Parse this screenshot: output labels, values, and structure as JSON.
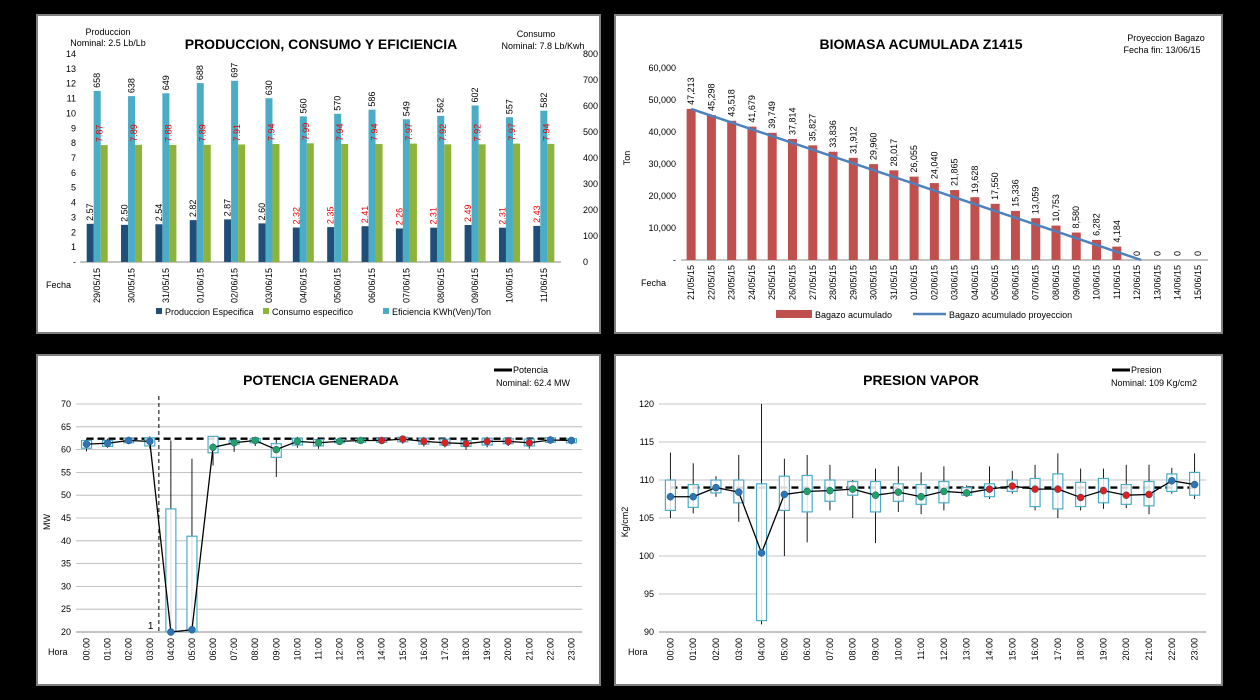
{
  "chart_data": [
    {
      "type": "bar",
      "title": "PRODUCCION, CONSUMO Y EFICIENCIA",
      "left_note": [
        "Produccion",
        "Nominal: 2.5 Lb/Lb"
      ],
      "right_note": [
        "Consumo",
        "Nominal: 7.8 Lb/Kwh"
      ],
      "xlabel": "Fecha",
      "categories": [
        "29/05/15",
        "30/05/15",
        "31/05/15",
        "01/06/15",
        "02/06/15",
        "03/06/15",
        "04/06/15",
        "05/06/15",
        "06/06/15",
        "07/06/15",
        "08/06/15",
        "09/06/15",
        "10/06/15",
        "11/06/15"
      ],
      "y_left": {
        "min": 0,
        "max": 14,
        "ticks": [
          "-",
          "1",
          "2",
          "3",
          "4",
          "5",
          "6",
          "7",
          "8",
          "9",
          "10",
          "11",
          "12",
          "13",
          "14"
        ]
      },
      "y_right": {
        "min": 0,
        "max": 800,
        "ticks": [
          "0",
          "100",
          "200",
          "300",
          "400",
          "500",
          "600",
          "700",
          "800"
        ]
      },
      "series": [
        {
          "name": "Produccion Especifica",
          "color": "#1f4e79",
          "axis": "left",
          "values": [
            2.57,
            2.5,
            2.54,
            2.82,
            2.87,
            2.6,
            2.32,
            2.35,
            2.41,
            2.26,
            2.31,
            2.49,
            2.31,
            2.43
          ],
          "labels": [
            "2.57",
            "2.50",
            "2.54",
            "2.82",
            "2.87",
            "2.60",
            "2.32",
            "2.35",
            "2.41",
            "2.26",
            "2.31",
            "2.49",
            "2.31",
            "2.43"
          ],
          "label_colors": [
            "#000",
            "#000",
            "#000",
            "#000",
            "#000",
            "#000",
            "#e00",
            "#e00",
            "#e00",
            "#e00",
            "#e00",
            "#e00",
            "#e00",
            "#e00"
          ]
        },
        {
          "name": "Consumo especifico",
          "color": "#8db33a",
          "axis": "left",
          "values": [
            7.87,
            7.89,
            7.88,
            7.89,
            7.91,
            7.94,
            7.99,
            7.94,
            7.94,
            7.97,
            7.92,
            7.92,
            7.97,
            7.94
          ],
          "labels": [
            "7.87",
            "7.89",
            "7.88",
            "7.89",
            "7.91",
            "7.94",
            "7.99",
            "7.94",
            "7.94",
            "7.97",
            "7.92",
            "7.92",
            "7.97",
            "7.94"
          ],
          "label_color": "#e00"
        },
        {
          "name": "Eficiencia KWh(Ven)/Ton",
          "color": "#4bacc6",
          "axis": "right",
          "values": [
            658,
            638,
            649,
            688,
            697,
            630,
            560,
            570,
            586,
            549,
            562,
            602,
            557,
            582
          ],
          "labels": [
            "658",
            "638",
            "649",
            "688",
            "697",
            "630",
            "560",
            "570",
            "586",
            "549",
            "562",
            "602",
            "557",
            "582"
          ],
          "label_color": "#000"
        }
      ]
    },
    {
      "type": "bar",
      "title": "BIOMASA ACUMULADA Z1415",
      "note": [
        "Proyeccion Bagazo",
        "Fecha fin: 13/06/15"
      ],
      "xlabel": "Fecha",
      "ylabel": "Ton",
      "ylim": [
        0,
        60000
      ],
      "y_ticks": [
        "-",
        "10,000",
        "20,000",
        "30,000",
        "40,000",
        "50,000",
        "60,000"
      ],
      "categories": [
        "21/05/15",
        "22/05/15",
        "23/05/15",
        "24/05/15",
        "25/05/15",
        "26/05/15",
        "27/05/15",
        "28/05/15",
        "29/05/15",
        "30/05/15",
        "31/05/15",
        "01/06/15",
        "02/06/15",
        "03/06/15",
        "04/06/15",
        "05/06/15",
        "06/06/15",
        "07/06/15",
        "08/06/15",
        "09/06/15",
        "10/06/15",
        "11/06/15",
        "12/06/15",
        "13/06/15",
        "14/06/15",
        "15/06/15"
      ],
      "series": [
        {
          "name": "Bagazo acumulado",
          "color": "#c0504d",
          "values": [
            47213,
            45298,
            43518,
            41679,
            39749,
            37814,
            35827,
            33836,
            31912,
            29960,
            28017,
            26055,
            24040,
            21865,
            19628,
            17550,
            15336,
            13059,
            10753,
            8580,
            6282,
            4184,
            0,
            0,
            0,
            0
          ],
          "labels": [
            "47,213",
            "45,298",
            "43,518",
            "41,679",
            "39,749",
            "37,814",
            "35,827",
            "33,836",
            "31,912",
            "29,960",
            "28,017",
            "26,055",
            "24,040",
            "21,865",
            "19,628",
            "17,550",
            "15,336",
            "13,059",
            "10,753",
            "8,580",
            "6,282",
            "4,184",
            "0",
            "0",
            "0",
            "0"
          ]
        },
        {
          "name": "Bagazo acumulado proyeccion",
          "color": "#4f81bd",
          "line_from": 47213,
          "line_to_index": 22.2
        }
      ]
    },
    {
      "type": "line",
      "title": "POTENCIA GENERADA",
      "legend": "Potencia",
      "nominal": "Nominal: 62.4 MW",
      "nominal_value": 62.4,
      "xlabel": "Hora",
      "ylabel": "MW",
      "ylim": [
        20,
        70
      ],
      "y_ticks": [
        "20",
        "25",
        "30",
        "35",
        "40",
        "45",
        "50",
        "55",
        "60",
        "65",
        "70"
      ],
      "x": [
        "00:00",
        "01:00",
        "02:00",
        "03:00",
        "04:00",
        "05:00",
        "06:00",
        "07:00",
        "08:00",
        "09:00",
        "10:00",
        "11:00",
        "12:00",
        "13:00",
        "14:00",
        "15:00",
        "16:00",
        "17:00",
        "18:00",
        "19:00",
        "20:00",
        "21:00",
        "22:00",
        "23:00"
      ],
      "values": [
        61.2,
        61.4,
        62.0,
        61.8,
        19.0,
        20.5,
        60.5,
        61.5,
        62.0,
        60.0,
        61.8,
        61.5,
        61.8,
        62.0,
        62.0,
        62.3,
        61.8,
        61.5,
        61.3,
        61.8,
        61.8,
        61.5,
        62.1,
        62.0
      ],
      "box_low": [
        60.3,
        60.7,
        61.5,
        60.8,
        20,
        20,
        59.3,
        61.2,
        61.5,
        58.3,
        61.0,
        60.8,
        61.5,
        61.6,
        61.6,
        61.7,
        61.2,
        61.0,
        60.7,
        61.0,
        61.3,
        60.8,
        61.6,
        61.5
      ],
      "box_high": [
        62.0,
        62.0,
        62.5,
        62.6,
        47,
        41,
        62.9,
        62.0,
        62.4,
        61.3,
        62.5,
        62.2,
        62.2,
        62.3,
        62.4,
        62.7,
        62.5,
        62.3,
        62.0,
        62.5,
        62.4,
        62.3,
        62.6,
        62.4
      ],
      "whisker_low": [
        59.6,
        60.4,
        61.2,
        60.2,
        20,
        20,
        56.5,
        59.5,
        60.8,
        54.0,
        60.4,
        60.2,
        61.0,
        61.3,
        61.2,
        61.3,
        60.7,
        60.5,
        60.0,
        60.5,
        60.8,
        60.2,
        61.3,
        61.2
      ],
      "whisker_high": [
        62.4,
        62.4,
        62.8,
        62.9,
        62.0,
        58.0,
        62.9,
        62.7,
        62.8,
        62.3,
        62.8,
        62.7,
        62.6,
        62.6,
        62.7,
        63.0,
        62.8,
        62.6,
        62.4,
        62.8,
        62.7,
        62.7,
        62.9,
        62.7
      ],
      "marker_colors": [
        "#2e75b6",
        "#2e75b6",
        "#2e75b6",
        "#2e75b6",
        "#2e75b6",
        "#2e75b6",
        "#21a366",
        "#21a366",
        "#21a366",
        "#21a366",
        "#21a366",
        "#21a366",
        "#21a366",
        "#21a366",
        "#e02020",
        "#e02020",
        "#e02020",
        "#e02020",
        "#e02020",
        "#e02020",
        "#e02020",
        "#e02020",
        "#2e75b6",
        "#2e75b6"
      ],
      "annotation": "1"
    },
    {
      "type": "line",
      "title": "PRESION VAPOR",
      "legend": "Presion",
      "nominal": "Nominal: 109 Kg/cm2",
      "nominal_value": 109,
      "xlabel": "Hora",
      "ylabel": "Kg/cm2",
      "ylim": [
        90,
        120
      ],
      "y_ticks": [
        "90",
        "95",
        "100",
        "105",
        "110",
        "115",
        "120"
      ],
      "x": [
        "00:00",
        "01:00",
        "02:00",
        "03:00",
        "04:00",
        "05:00",
        "06:00",
        "07:00",
        "08:00",
        "09:00",
        "10:00",
        "11:00",
        "12:00",
        "13:00",
        "14:00",
        "15:00",
        "16:00",
        "17:00",
        "18:00",
        "19:00",
        "20:00",
        "21:00",
        "22:00",
        "23:00"
      ],
      "values": [
        107.8,
        107.8,
        109.0,
        108.4,
        100.4,
        108.1,
        108.5,
        108.6,
        108.8,
        108.0,
        108.4,
        107.8,
        108.5,
        108.3,
        108.8,
        109.2,
        108.8,
        108.8,
        107.7,
        108.6,
        108.0,
        108.1,
        109.9,
        109.4
      ],
      "box_low": [
        106.0,
        106.4,
        108.3,
        107.0,
        91.5,
        106.0,
        105.8,
        107.2,
        108.0,
        105.8,
        107.2,
        106.8,
        107.0,
        108.0,
        107.8,
        108.5,
        106.5,
        106.2,
        106.5,
        107.0,
        106.8,
        106.6,
        108.5,
        108.0
      ],
      "box_high": [
        110.0,
        109.4,
        110.0,
        110.0,
        109.5,
        110.5,
        110.6,
        110.0,
        109.8,
        109.8,
        109.5,
        109.4,
        109.8,
        109.0,
        109.5,
        110.0,
        110.2,
        110.8,
        109.7,
        110.2,
        109.4,
        109.8,
        110.8,
        111.0
      ],
      "whisker_low": [
        105.0,
        105.6,
        107.8,
        104.5,
        91.0,
        100.0,
        101.8,
        106.0,
        105.0,
        101.7,
        105.8,
        105.5,
        106.0,
        107.8,
        107.5,
        108.2,
        106.0,
        105.0,
        106.0,
        106.2,
        106.3,
        105.5,
        108.2,
        107.5
      ],
      "whisker_high": [
        113.6,
        112.2,
        110.5,
        113.3,
        120.0,
        112.8,
        113.3,
        112.0,
        110.0,
        111.5,
        111.8,
        111.0,
        111.8,
        109.3,
        111.8,
        111.2,
        112.0,
        113.5,
        111.5,
        111.5,
        112.0,
        112.0,
        111.6,
        113.5
      ],
      "marker_colors": [
        "#2e75b6",
        "#2e75b6",
        "#2e75b6",
        "#2e75b6",
        "#2e75b6",
        "#2e75b6",
        "#21a366",
        "#21a366",
        "#21a366",
        "#21a366",
        "#21a366",
        "#21a366",
        "#21a366",
        "#21a366",
        "#e02020",
        "#e02020",
        "#e02020",
        "#e02020",
        "#e02020",
        "#e02020",
        "#e02020",
        "#e02020",
        "#2e75b6",
        "#2e75b6"
      ]
    }
  ]
}
